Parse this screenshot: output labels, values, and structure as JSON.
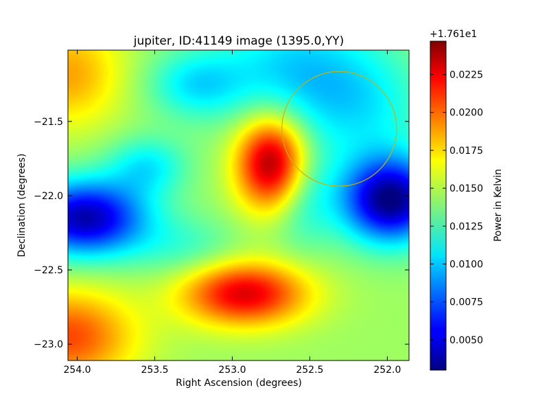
{
  "chart_data": {
    "type": "heatmap",
    "title": "jupiter, ID:41149 image (1395.0,YY)",
    "xlabel": "Right Ascension (degrees)",
    "ylabel": "Declination (degrees)",
    "xlim": [
      254.06,
      251.86
    ],
    "ylim": [
      -23.11,
      -21.02
    ],
    "x_ticks": [
      254.0,
      253.5,
      253.0,
      252.5,
      252.0
    ],
    "x_tick_labels": [
      "254.0",
      "253.5",
      "253.0",
      "252.5",
      "252.0"
    ],
    "y_ticks": [
      -21.5,
      -22.0,
      -22.5,
      -23.0
    ],
    "y_tick_labels": [
      "−21.5",
      "−22.0",
      "−22.5",
      "−23.0"
    ],
    "colormap": "jet",
    "colorbar": {
      "label": "Power in Kelvin",
      "offset_text": "+1.761e1",
      "range": [
        0.003,
        0.0247
      ],
      "ticks": [
        0.005,
        0.0075,
        0.01,
        0.0125,
        0.015,
        0.0175,
        0.02,
        0.0225
      ],
      "tick_labels": [
        "0.0050",
        "0.0075",
        "0.0100",
        "0.0125",
        "0.0150",
        "0.0175",
        "0.0200",
        "0.0225"
      ]
    },
    "background_level": 0.0145,
    "features": [
      {
        "ra": 252.74,
        "dec": -21.78,
        "sigma_ra": 0.16,
        "sigma_dec": 0.22,
        "amplitude": 0.0102
      },
      {
        "ra": 252.92,
        "dec": -22.66,
        "sigma_ra": 0.28,
        "sigma_dec": 0.15,
        "amplitude": 0.0082
      },
      {
        "ra": 254.06,
        "dec": -22.95,
        "sigma_ra": 0.3,
        "sigma_dec": 0.22,
        "amplitude": 0.006
      },
      {
        "ra": 254.06,
        "dec": -21.18,
        "sigma_ra": 0.25,
        "sigma_dec": 0.25,
        "amplitude": 0.004
      },
      {
        "ra": 251.98,
        "dec": -22.03,
        "sigma_ra": 0.22,
        "sigma_dec": 0.2,
        "amplitude": -0.0115
      },
      {
        "ra": 253.95,
        "dec": -22.15,
        "sigma_ra": 0.28,
        "sigma_dec": 0.18,
        "amplitude": -0.0105
      },
      {
        "ra": 253.55,
        "dec": -21.8,
        "sigma_ra": 0.18,
        "sigma_dec": 0.14,
        "amplitude": -0.0035
      },
      {
        "ra": 253.24,
        "dec": -21.25,
        "sigma_ra": 0.22,
        "sigma_dec": 0.16,
        "amplitude": -0.0035
      },
      {
        "ra": 252.62,
        "dec": -21.15,
        "sigma_ra": 0.35,
        "sigma_dec": 0.3,
        "amplitude": -0.004
      },
      {
        "ra": 252.15,
        "dec": -21.4,
        "sigma_ra": 0.3,
        "sigma_dec": 0.3,
        "amplitude": -0.003
      },
      {
        "ra": 252.55,
        "dec": -22.0,
        "sigma_ra": 0.15,
        "sigma_dec": 0.25,
        "amplitude": -0.003
      },
      {
        "ra": 253.3,
        "dec": -22.35,
        "sigma_ra": 0.25,
        "sigma_dec": 0.15,
        "amplitude": -0.002
      }
    ],
    "annotations": [
      {
        "type": "circle",
        "ra": 252.31,
        "dec": -21.55,
        "radius_deg": 0.37,
        "color": "#c8b400"
      }
    ]
  }
}
